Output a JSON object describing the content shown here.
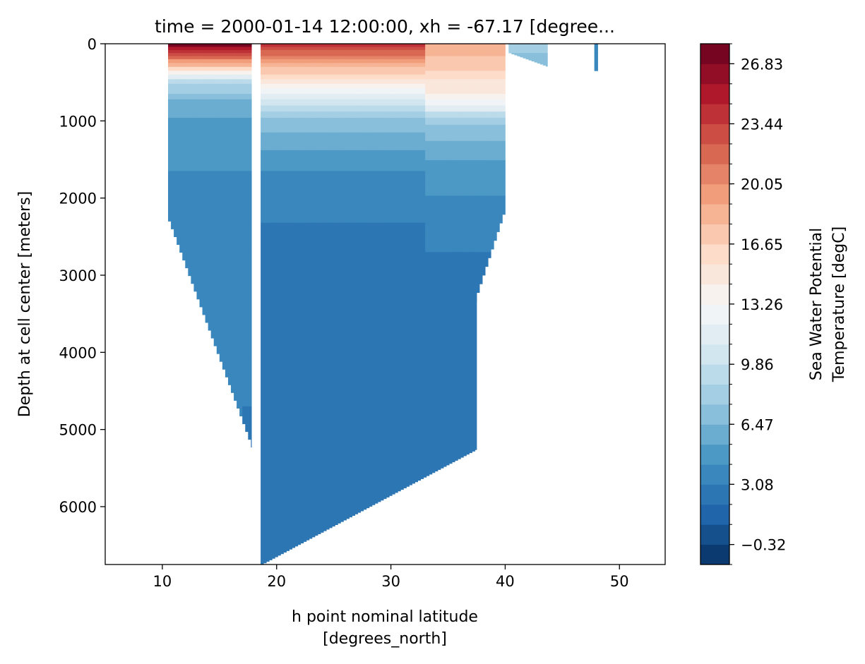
{
  "chart_data": {
    "type": "heatmap",
    "title": "time = 2000-01-14 12:00:00, xh = -67.17 [degree...",
    "xlabel_line1": "h point nominal latitude",
    "xlabel_line2": "[degrees_north]",
    "ylabel": "Depth at cell center [meters]",
    "xlim": [
      5,
      54
    ],
    "ylim": [
      6750,
      0
    ],
    "y_inverted": true,
    "x_ticks": [
      10,
      20,
      30,
      40,
      50
    ],
    "y_ticks": [
      0,
      1000,
      2000,
      3000,
      4000,
      5000,
      6000
    ],
    "colorbar": {
      "label_line1": "Sea Water Potential",
      "label_line2": "Temperature [degC]",
      "vmin": -1.45,
      "vmax": 27.96,
      "levels": 26,
      "ticks": [
        "26.83",
        "23.44",
        "20.05",
        "16.65",
        "13.26",
        "9.86",
        "6.47",
        "3.08",
        "−0.32"
      ],
      "tick_values": [
        26.83,
        23.44,
        20.05,
        16.65,
        13.26,
        9.86,
        6.47,
        3.08,
        -0.32
      ],
      "colormap": "RdBu_r"
    },
    "sections": [
      {
        "lat_range": [
          10.5,
          17.8
        ],
        "depth_top": 0,
        "bottom_depth": [
          2300,
          5250
        ],
        "temperature_profile": [
          [
            0,
            27.5
          ],
          [
            200,
            21
          ],
          [
            500,
            9
          ],
          [
            800,
            6
          ],
          [
            1200,
            4.5
          ],
          [
            2500,
            3.5
          ],
          [
            5200,
            3
          ]
        ]
      },
      {
        "lat_range": [
          18.6,
          37.5
        ],
        "depth_top": 0,
        "bottom_depth": [
          6750,
          5250
        ],
        "temperature_profile": [
          [
            0,
            24
          ],
          [
            300,
            18
          ],
          [
            600,
            13
          ],
          [
            900,
            8
          ],
          [
            1500,
            4.5
          ],
          [
            2300,
            3
          ],
          [
            3300,
            2.2
          ],
          [
            5200,
            2
          ]
        ]
      },
      {
        "lat_range": [
          33.0,
          40.0
        ],
        "depth_top": 0,
        "bottom_depth": [
          5250,
          2100
        ],
        "temperature_profile": [
          [
            0,
            19
          ],
          [
            700,
            14
          ],
          [
            1000,
            8
          ],
          [
            1600,
            5
          ],
          [
            2300,
            3.5
          ],
          [
            3300,
            2.5
          ],
          [
            4500,
            2.2
          ]
        ]
      },
      {
        "lat_range": [
          40.3,
          43.7
        ],
        "depth_top": 0,
        "bottom_depth": [
          120,
          300
        ],
        "temperature_profile": [
          [
            0,
            8
          ],
          [
            300,
            7
          ]
        ]
      },
      {
        "lat_range": [
          47.8,
          48.1
        ],
        "depth_top": 0,
        "bottom_depth": [
          350,
          350
        ],
        "temperature_profile": [
          [
            0,
            3.5
          ],
          [
            350,
            3.2
          ]
        ]
      }
    ]
  }
}
